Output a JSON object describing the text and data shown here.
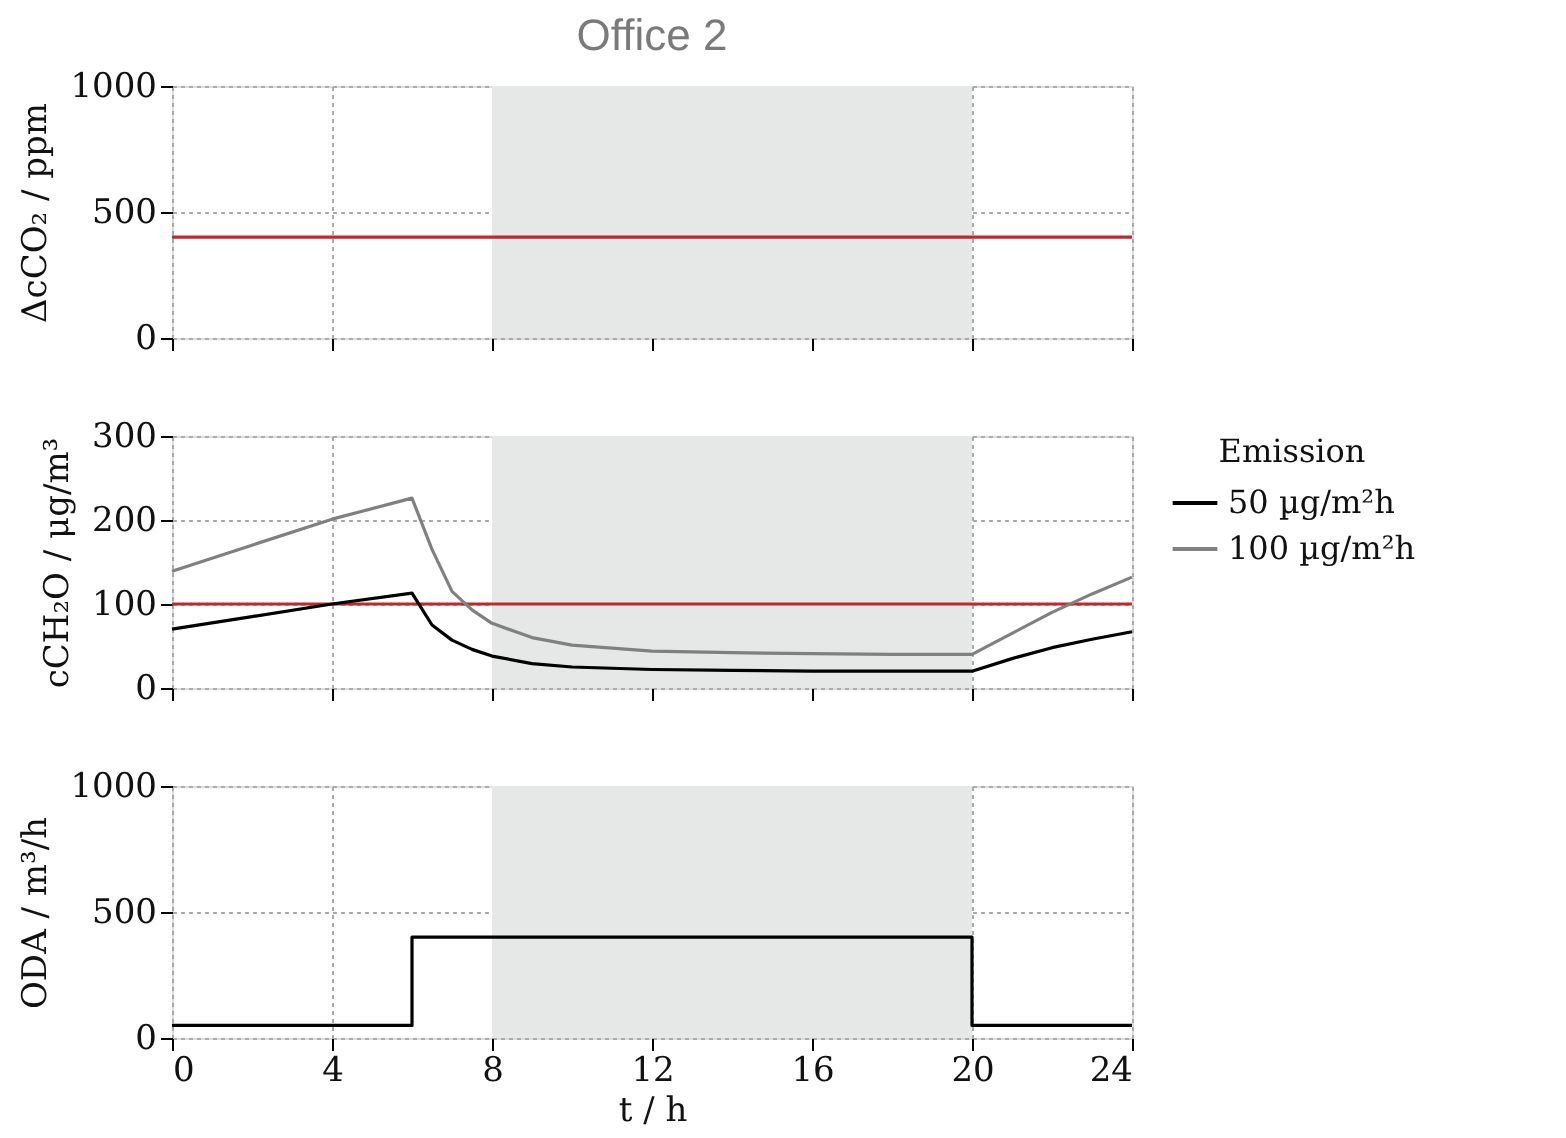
{
  "chart_data": [
    {
      "type": "line",
      "title": "Office 2",
      "ylabel": "ΔcCO₂ / ppm",
      "xlim": [
        0,
        24
      ],
      "xticks": [
        0,
        4,
        8,
        12,
        16,
        20,
        24
      ],
      "ylim": [
        0,
        1000
      ],
      "yticks": [
        0,
        500,
        1000
      ],
      "tick_labels": "y",
      "grid": true,
      "bands": [
        {
          "axis": "x",
          "from": 8,
          "to": 20,
          "color": "#e6e7e7"
        }
      ],
      "ref_lines": [
        {
          "axis": "y",
          "value": 400,
          "color": "#c0282d"
        }
      ]
    },
    {
      "type": "line",
      "ylabel": "cCH₂O / μg/m³",
      "xlim": [
        0,
        24
      ],
      "xticks": [
        0,
        4,
        8,
        12,
        16,
        20,
        24
      ],
      "ylim": [
        0,
        300
      ],
      "yticks": [
        0,
        100,
        200,
        300
      ],
      "tick_labels": "y",
      "grid": true,
      "legend": "right",
      "legend_title": "Emission",
      "x": [
        0,
        2,
        4,
        6,
        6.5,
        7,
        7.5,
        8,
        9,
        10,
        12,
        14,
        16,
        18,
        20,
        21,
        22,
        23,
        24
      ],
      "series": [
        {
          "name": "50 µg/m²h",
          "color": "#000000",
          "values": [
            70,
            85,
            100,
            113,
            75,
            57,
            46,
            38,
            29,
            25,
            22,
            21,
            20,
            20,
            20,
            35,
            48,
            58,
            67
          ]
        },
        {
          "name": "100 µg/m²h",
          "color": "#808080",
          "values": [
            139,
            170,
            201,
            226,
            165,
            115,
            93,
            77,
            60,
            51,
            44,
            42,
            41,
            40,
            40,
            65,
            90,
            112,
            132
          ]
        }
      ],
      "bands": [
        {
          "axis": "x",
          "from": 8,
          "to": 20,
          "color": "#e6e7e7"
        }
      ],
      "ref_lines": [
        {
          "axis": "y",
          "value": 100,
          "color": "#c0282d"
        }
      ]
    },
    {
      "type": "step",
      "xlabel": "t / h",
      "ylabel": "ODA / m³/h",
      "xlim": [
        0,
        24
      ],
      "xticks": [
        0,
        4,
        8,
        12,
        16,
        20,
        24
      ],
      "ylim": [
        0,
        1000
      ],
      "yticks": [
        0,
        500,
        1000
      ],
      "grid": true,
      "x": [
        0,
        6,
        20,
        24
      ],
      "series": [
        {
          "color": "#000000",
          "values": [
            50,
            400,
            50,
            50
          ]
        }
      ],
      "bands": [
        {
          "axis": "x",
          "from": 8,
          "to": 20,
          "color": "#e6e7e7"
        }
      ]
    }
  ]
}
